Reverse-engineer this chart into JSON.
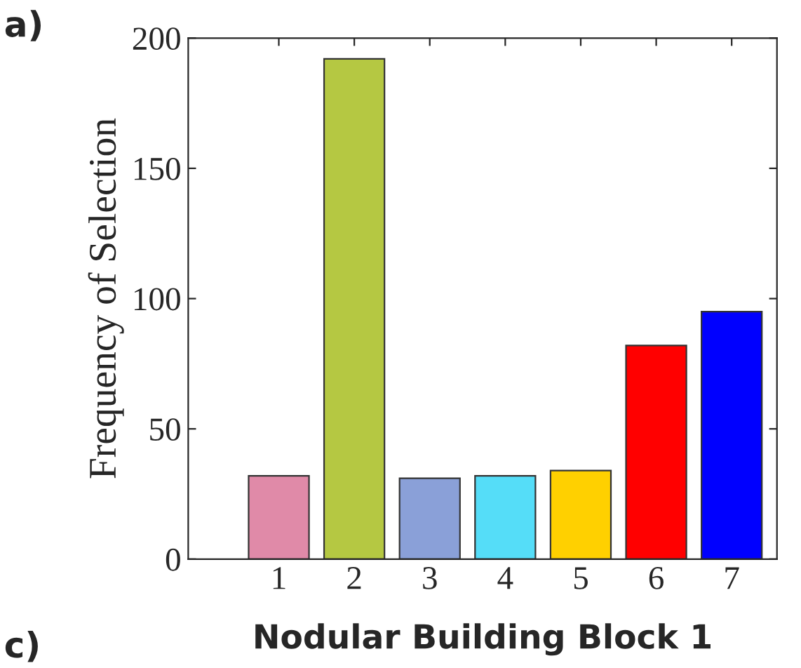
{
  "chart_data": {
    "type": "bar",
    "xlabel": "Nodular Building Block 1",
    "ylabel": "Frequency of Selection",
    "categories": [
      "1",
      "2",
      "3",
      "4",
      "5",
      "6",
      "7"
    ],
    "values": [
      32,
      192,
      31,
      32,
      34,
      82,
      95
    ],
    "colors": [
      "#e08aa8",
      "#b5c842",
      "#8aa0d8",
      "#55ddf8",
      "#ffd000",
      "#ff0000",
      "#0000ff"
    ],
    "ylim": [
      0,
      200
    ],
    "yticks": [
      0,
      50,
      100,
      150,
      200
    ],
    "grid": false,
    "legend": false,
    "annotations": [
      "a)",
      "c)"
    ]
  }
}
